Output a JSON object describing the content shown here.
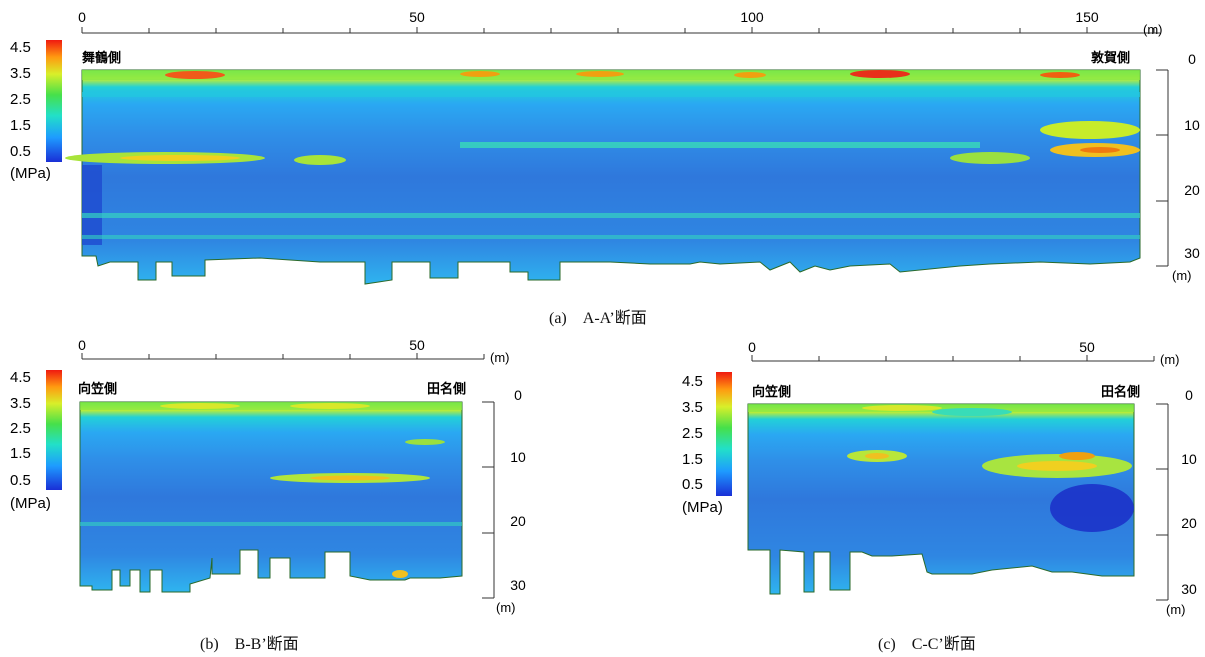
{
  "colorbar": {
    "ticks": [
      "4.5",
      "3.5",
      "2.5",
      "1.5",
      "0.5"
    ],
    "unit": "(MPa)",
    "colors": [
      "#1a2fd6",
      "#1e9bff",
      "#22e0c8",
      "#46e04a",
      "#d8ef2a",
      "#ff9a10",
      "#f01a10"
    ]
  },
  "section_fill": "#3a8fe6",
  "panels": [
    {
      "id": "a",
      "caption": "(a)　A-A’断面",
      "left_label": "舞鶴側",
      "right_label": "敦賀側",
      "x_ticks": [
        "0",
        "50",
        "100",
        "150"
      ],
      "x_unit": "(m)",
      "depth_ticks": [
        "0",
        "10",
        "20",
        "30"
      ],
      "depth_unit": "(m)"
    },
    {
      "id": "b",
      "caption": "(b)　B-B’断面",
      "left_label": "向笠側",
      "right_label": "田名側",
      "x_ticks": [
        "0",
        "50"
      ],
      "x_unit": "(m)",
      "depth_ticks": [
        "0",
        "10",
        "20",
        "30"
      ],
      "depth_unit": "(m)"
    },
    {
      "id": "c",
      "caption": "(c)　C-C’断面",
      "left_label": "向笠側",
      "right_label": "田名側",
      "x_ticks": [
        "0",
        "50"
      ],
      "x_unit": "(m)",
      "depth_ticks": [
        "0",
        "10",
        "20",
        "30"
      ],
      "depth_unit": "(m)"
    }
  ]
}
